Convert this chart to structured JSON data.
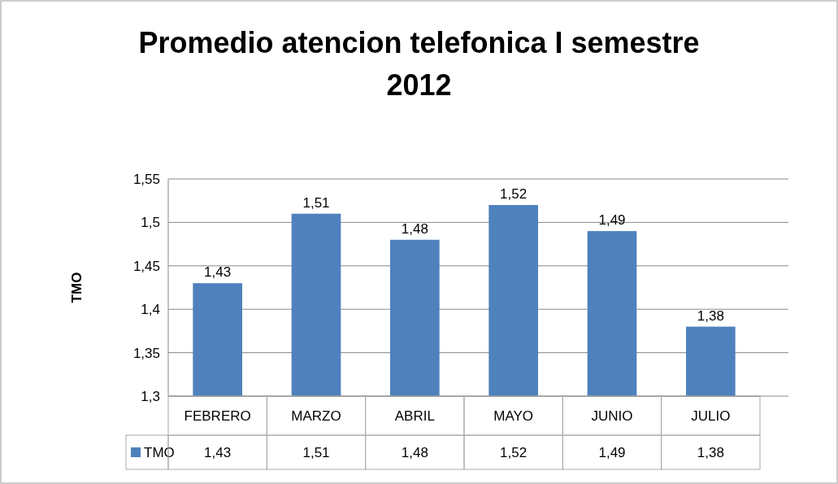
{
  "chart_data": {
    "type": "bar",
    "title": "Promedio atencion telefonica I semestre 2012",
    "ylabel": "TMO",
    "categories": [
      "FEBRERO",
      "MARZO",
      "ABRIL",
      "MAYO",
      "JUNIO",
      "JULIO"
    ],
    "series": [
      {
        "name": "TMO",
        "color": "#4f81bd",
        "values": [
          1.43,
          1.51,
          1.48,
          1.52,
          1.49,
          1.38
        ],
        "value_labels": [
          "1,43",
          "1,51",
          "1,48",
          "1,52",
          "1,49",
          "1,38"
        ]
      }
    ],
    "ylim": [
      1.3,
      1.55
    ],
    "yticks": [
      {
        "value": 1.3,
        "label": "1,3"
      },
      {
        "value": 1.35,
        "label": "1,35"
      },
      {
        "value": 1.4,
        "label": "1,4"
      },
      {
        "value": 1.45,
        "label": "1,45"
      },
      {
        "value": 1.5,
        "label": "1,5"
      },
      {
        "value": 1.55,
        "label": "1,55"
      }
    ],
    "grid": "y",
    "legend": "bottom"
  }
}
